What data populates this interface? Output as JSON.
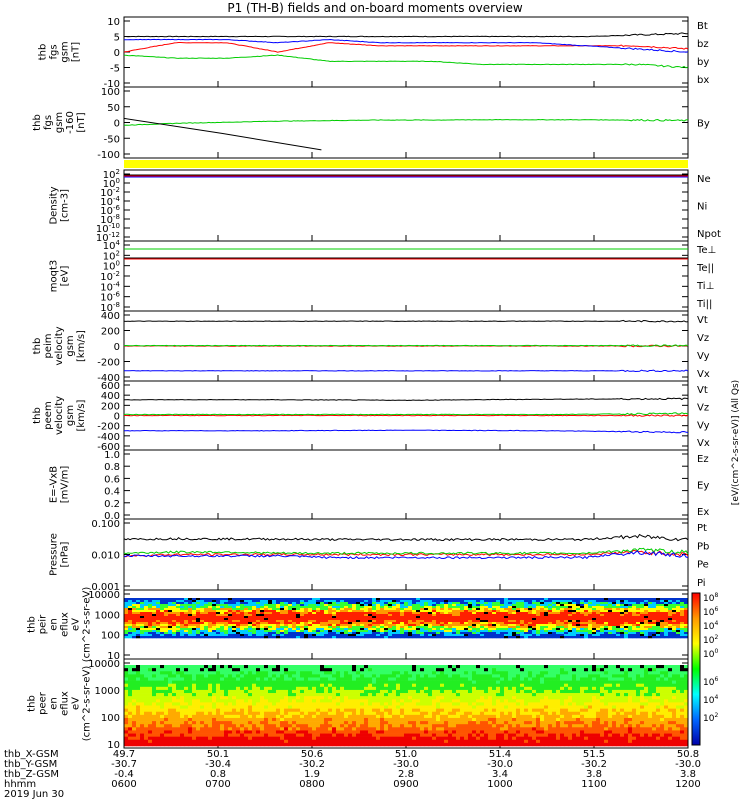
{
  "title": "P1  (TH-B)  fields and on-board moments overview",
  "footer": {
    "rows": [
      {
        "label": "thb_X-GSM",
        "values": [
          "49.7",
          "50.1",
          "50.6",
          "51.0",
          "51.4",
          "51.5",
          "50.8"
        ]
      },
      {
        "label": "thb_Y-GSM",
        "values": [
          "-30.7",
          "-30.4",
          "-30.2",
          "-30.0",
          "-30.0",
          "-30.2",
          "-30.0"
        ]
      },
      {
        "label": "thb_Z-GSM",
        "values": [
          "-0.4",
          "0.8",
          "1.9",
          "2.8",
          "3.4",
          "3.8",
          "3.8"
        ]
      },
      {
        "label": "hhmm",
        "values": [
          "0600",
          "0700",
          "0800",
          "0900",
          "1000",
          "1100",
          "1200"
        ]
      }
    ],
    "date": "2019 Jun 30"
  },
  "colorbar": {
    "label": "[eV/(cm^2-s-sr-eV)] (All Qs)",
    "ticks_top": [
      "10^8",
      "10^6",
      "10^4",
      "10^2",
      "10^0"
    ],
    "ticks_bottom": [
      "10^6",
      "10^4",
      "10^2"
    ],
    "colors": [
      "#ff0000",
      "#ff9900",
      "#ffff00",
      "#00ff00",
      "#00ffff",
      "#0066ff",
      "#0000aa"
    ]
  },
  "chart_data": [
    {
      "type": "line",
      "ylabel": "thb fgs gsm [nT]",
      "yticks": [
        "10",
        "5",
        "0",
        "-5",
        "-10"
      ],
      "ylim": [
        -10,
        10
      ],
      "series": [
        {
          "name": "Bt",
          "color": "#000000",
          "values": [
            5,
            5,
            5,
            5,
            5,
            5,
            5,
            5,
            5,
            5,
            5.5,
            6
          ]
        },
        {
          "name": "bz",
          "color": "#ff0000",
          "values": [
            0,
            3,
            3,
            0,
            3,
            2,
            2,
            2,
            2,
            2,
            2,
            1
          ]
        },
        {
          "name": "by",
          "color": "#00cc00",
          "values": [
            -1,
            -2,
            -2,
            -1,
            -3,
            -3,
            -3,
            -4,
            -4,
            -4,
            -4,
            -5
          ]
        },
        {
          "name": "bx",
          "color": "#0000ff",
          "values": [
            4,
            4,
            4,
            3,
            4,
            3,
            3,
            3,
            3,
            2,
            1,
            0
          ]
        }
      ]
    },
    {
      "type": "line",
      "ylabel": "thb fgs gsm -160 [nT]",
      "yticks": [
        "100",
        "50",
        "0",
        "-50",
        "-100"
      ],
      "ylim": [
        -130,
        100
      ],
      "series": [
        {
          "name": "By",
          "color": "#00cc00",
          "values": [
            -25,
            -18,
            -14,
            -10,
            -8,
            -6,
            -6,
            -5,
            -5,
            -5,
            -6,
            -8
          ]
        },
        {
          "name": "",
          "color": "#000000",
          "values": [
            0,
            -55,
            -115
          ]
        }
      ]
    },
    {
      "type": "line",
      "ylabel": "Density [cm-3]",
      "yticks": [
        "10^2",
        "10^0",
        "10^-2",
        "10^-4",
        "10^-6",
        "10^-8",
        "10^-10",
        "10^-12"
      ],
      "series": [
        {
          "name": "Ne",
          "color": "#ff0000"
        },
        {
          "name": "Ni",
          "color": "#000000"
        },
        {
          "name": "Npot",
          "color": "#0000ff"
        }
      ]
    },
    {
      "type": "line",
      "ylabel": "moqt3 [eV]",
      "yticks": [
        "10^4",
        "10^2",
        "10^0",
        "10^-2",
        "10^-4",
        "10^-6",
        "10^-8"
      ],
      "series": [
        {
          "name": "Te⊥",
          "color": "#ff0000"
        },
        {
          "name": "Te||",
          "color": "#000000"
        },
        {
          "name": "Ti⊥",
          "color": "#0000ff"
        },
        {
          "name": "Ti||",
          "color": "#00cc00"
        }
      ]
    },
    {
      "type": "line",
      "ylabel": "thb peim velocity gsm [km/s]",
      "yticks": [
        "400",
        "200",
        "0",
        "-200",
        "-400"
      ],
      "ylim": [
        -400,
        400
      ],
      "series": [
        {
          "name": "Vt",
          "color": "#000000",
          "values": [
            320,
            320,
            320
          ]
        },
        {
          "name": "Vz",
          "color": "#ff0000",
          "values": [
            0,
            0,
            0
          ]
        },
        {
          "name": "Vy",
          "color": "#00cc00",
          "values": [
            5,
            5,
            5
          ]
        },
        {
          "name": "Vx",
          "color": "#0000ff",
          "values": [
            -320,
            -320,
            -320
          ]
        }
      ]
    },
    {
      "type": "line",
      "ylabel": "thb peem velocity gsm [km/s]",
      "yticks": [
        "600",
        "400",
        "200",
        "0",
        "-200",
        "-400",
        "-600"
      ],
      "ylim": [
        -600,
        600
      ],
      "series": [
        {
          "name": "Vt",
          "color": "#000000",
          "values": [
            310,
            310,
            300,
            320,
            330
          ]
        },
        {
          "name": "Vz",
          "color": "#ff0000",
          "values": [
            0,
            0,
            0,
            0,
            0
          ]
        },
        {
          "name": "Vy",
          "color": "#00cc00",
          "values": [
            20,
            20,
            20,
            20,
            40
          ]
        },
        {
          "name": "Vx",
          "color": "#0000ff",
          "values": [
            -300,
            -300,
            -290,
            -300,
            -330
          ]
        }
      ]
    },
    {
      "type": "line",
      "ylabel": "E=-VxB [mV/m]",
      "yticks": [
        "1.0",
        "0.8",
        "0.6",
        "0.4",
        "0.2",
        "0.0"
      ],
      "ylim": [
        0,
        1
      ],
      "series": [
        {
          "name": "Ez",
          "color": "#ff0000"
        },
        {
          "name": "Ey",
          "color": "#00cc00"
        },
        {
          "name": "Ex",
          "color": "#0000ff"
        }
      ]
    },
    {
      "type": "line",
      "ylabel": "Pressure [nPa]",
      "yticks": [
        "0.100",
        "0.010",
        "0.001"
      ],
      "ylim": [
        0.001,
        0.1
      ],
      "yscale": "log",
      "series": [
        {
          "name": "Pt",
          "color": "#000000",
          "values": [
            0.03,
            0.032,
            0.031,
            0.031,
            0.03,
            0.03,
            0.03,
            0.03,
            0.03,
            0.03,
            0.038,
            0.03
          ]
        },
        {
          "name": "Pb",
          "color": "#ff0000",
          "values": [
            0.009,
            0.01,
            0.01,
            0.01,
            0.01,
            0.01,
            0.01,
            0.01,
            0.01,
            0.01,
            0.012,
            0.01
          ]
        },
        {
          "name": "Pe",
          "color": "#00cc00",
          "values": [
            0.011,
            0.012,
            0.012,
            0.011,
            0.011,
            0.011,
            0.011,
            0.011,
            0.011,
            0.011,
            0.014,
            0.012
          ]
        },
        {
          "name": "Pi",
          "color": "#0000ff",
          "values": [
            0.009,
            0.009,
            0.009,
            0.009,
            0.008,
            0.008,
            0.008,
            0.008,
            0.008,
            0.008,
            0.012,
            0.009
          ]
        }
      ]
    },
    {
      "type": "heatmap",
      "ylabel": "thb peir en eflux eV (cm^2-s-sr-eV)",
      "yticks": [
        "10000",
        "1000",
        "100",
        "10"
      ]
    },
    {
      "type": "heatmap",
      "ylabel": "thb peer en eflux eV (cm^2-s-sr-eV)",
      "yticks": [
        "10000",
        "1000",
        "100",
        "10"
      ]
    }
  ]
}
